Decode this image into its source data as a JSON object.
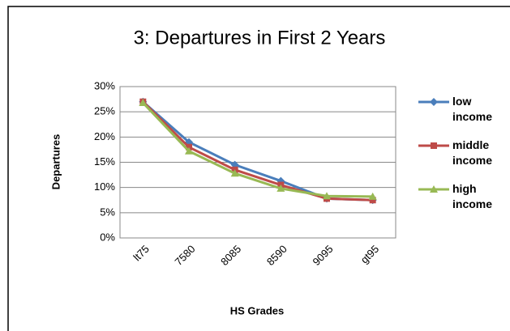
{
  "chart_data": {
    "type": "line",
    "title": "3:  Departures in First 2 Years",
    "x_label": "HS Grades",
    "y_label": "Departures",
    "categories": [
      "lt75",
      "7580",
      "8085",
      "8590",
      "9095",
      "gt95"
    ],
    "series": [
      {
        "name": "low income",
        "color": "#4a7ebb",
        "marker": "diamond",
        "values": [
          27,
          19,
          14.5,
          11.3,
          7.8,
          7.5
        ]
      },
      {
        "name": "middle income",
        "color": "#be4b48",
        "marker": "square",
        "values": [
          27,
          18,
          13.5,
          10.5,
          7.8,
          7.5
        ]
      },
      {
        "name": "high income",
        "color": "#98b954",
        "marker": "triangle",
        "values": [
          26.8,
          17.2,
          12.8,
          9.8,
          8.3,
          8.2
        ]
      }
    ],
    "ylim": [
      0,
      30
    ],
    "yticks": [
      {
        "value": 0,
        "label": "0%"
      },
      {
        "value": 5,
        "label": "5%"
      },
      {
        "value": 10,
        "label": "10%"
      },
      {
        "value": 15,
        "label": "15%"
      },
      {
        "value": 20,
        "label": "20%"
      },
      {
        "value": 25,
        "label": "25%"
      },
      {
        "value": 30,
        "label": "30%"
      }
    ],
    "grid": true,
    "legend": "right"
  }
}
